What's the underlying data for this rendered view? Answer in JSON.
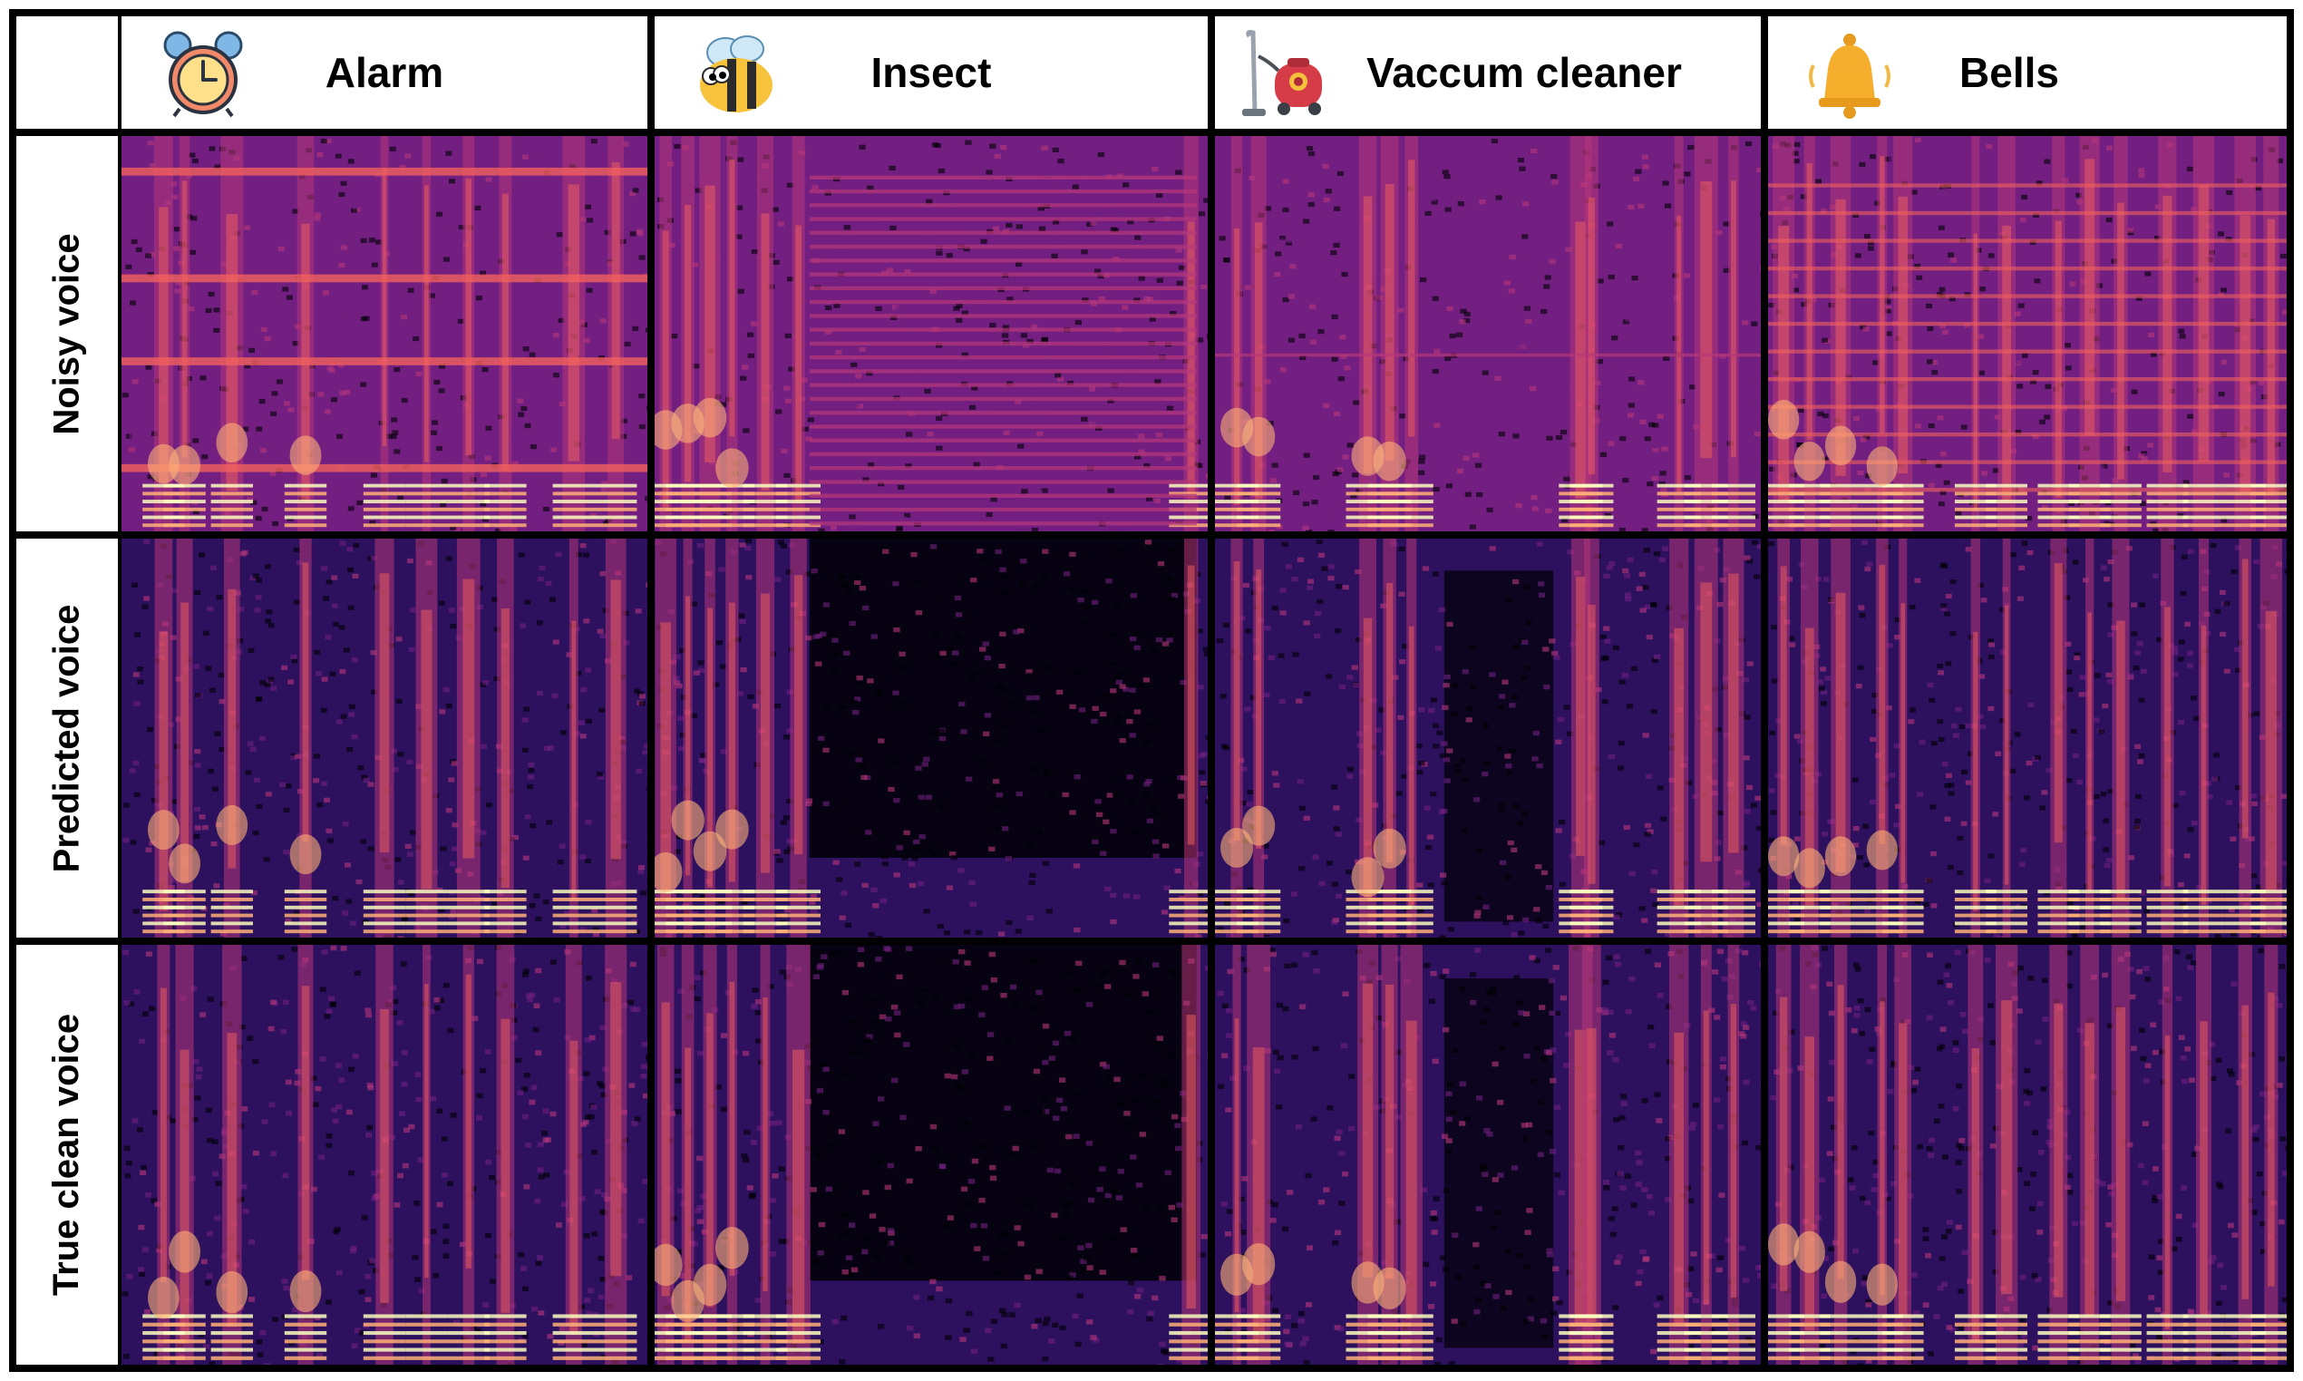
{
  "columns": [
    {
      "label": "Alarm",
      "icon": "alarm-clock-icon"
    },
    {
      "label": "Insect",
      "icon": "bee-icon"
    },
    {
      "label": "Vaccum cleaner",
      "icon": "vacuum-cleaner-icon"
    },
    {
      "label": "Bells",
      "icon": "bell-icon"
    }
  ],
  "rows": [
    {
      "label": "Noisy voice"
    },
    {
      "label": "Predicted voice"
    },
    {
      "label": "True clean voice"
    }
  ],
  "colormap": [
    "#000004",
    "#2d115f",
    "#721f81",
    "#b73779",
    "#f1605d",
    "#feb078",
    "#fcfdbf"
  ]
}
